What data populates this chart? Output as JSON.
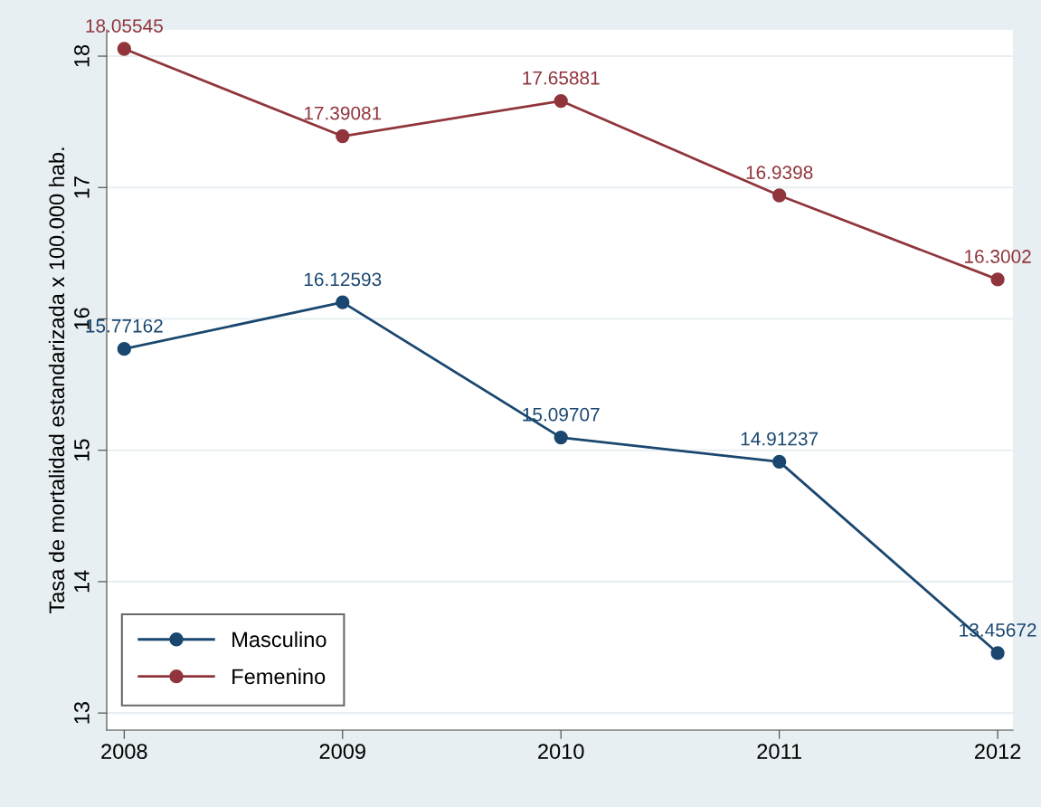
{
  "chart_data": {
    "type": "line",
    "ylabel": "Tasa de mortalidad estandarizada x 100.000 hab.",
    "x": [
      2008,
      2009,
      2010,
      2011,
      2012
    ],
    "series": [
      {
        "name": "Masculino",
        "color": "#1a476f",
        "values": [
          15.77162,
          16.12593,
          15.09707,
          14.91237,
          13.45672
        ]
      },
      {
        "name": "Femenino",
        "color": "#90353b",
        "values": [
          18.05545,
          17.39081,
          17.65881,
          16.9398,
          16.3002
        ]
      }
    ],
    "xlim": [
      2007.92,
      2012.07
    ],
    "xticks": [
      2008,
      2009,
      2010,
      2011,
      2012
    ],
    "ylim": [
      12.87,
      18.2
    ],
    "yticks": [
      13,
      14,
      15,
      16,
      17,
      18
    ],
    "grid": "y",
    "legend": "bottom left",
    "marker": "circle",
    "line_style": "solid",
    "data_labels": true
  }
}
